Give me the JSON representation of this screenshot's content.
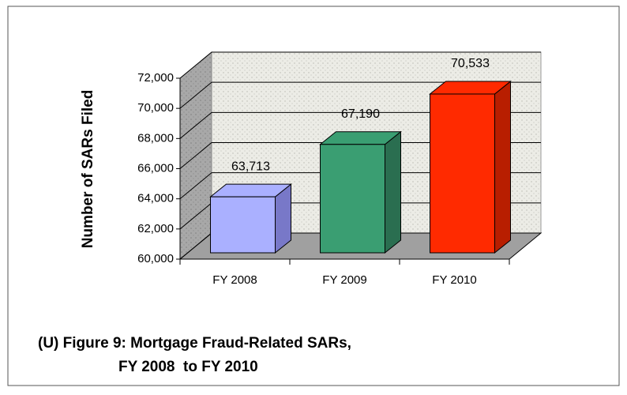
{
  "chart_data": {
    "type": "bar3d",
    "title": [
      "(U) Figure 9: Mortgage Fraud-Related SARs,",
      "FY 2008  to FY 2010"
    ],
    "y_label": "Number of SARs Filed",
    "categories": [
      "FY 2008",
      "FY 2009",
      "FY 2010"
    ],
    "values": [
      63713,
      67190,
      70533
    ],
    "value_labels": [
      "63,713",
      "67,190",
      "70,533"
    ],
    "colors": [
      "#aab0ff",
      "#3a9e72",
      "#ff2a00"
    ],
    "side_colors": [
      "#7878c8",
      "#2a6e50",
      "#b81e00"
    ],
    "ylim": [
      60000,
      72000
    ],
    "yticks": [
      {
        "value": 60000,
        "label": "60,000"
      },
      {
        "value": 62000,
        "label": "62,000"
      },
      {
        "value": 64000,
        "label": "64,000"
      },
      {
        "value": 66000,
        "label": "66,000"
      },
      {
        "value": 68000,
        "label": "68,000"
      },
      {
        "value": 70000,
        "label": "70,000"
      },
      {
        "value": 72000,
        "label": "72,000"
      }
    ],
    "grid": true
  }
}
